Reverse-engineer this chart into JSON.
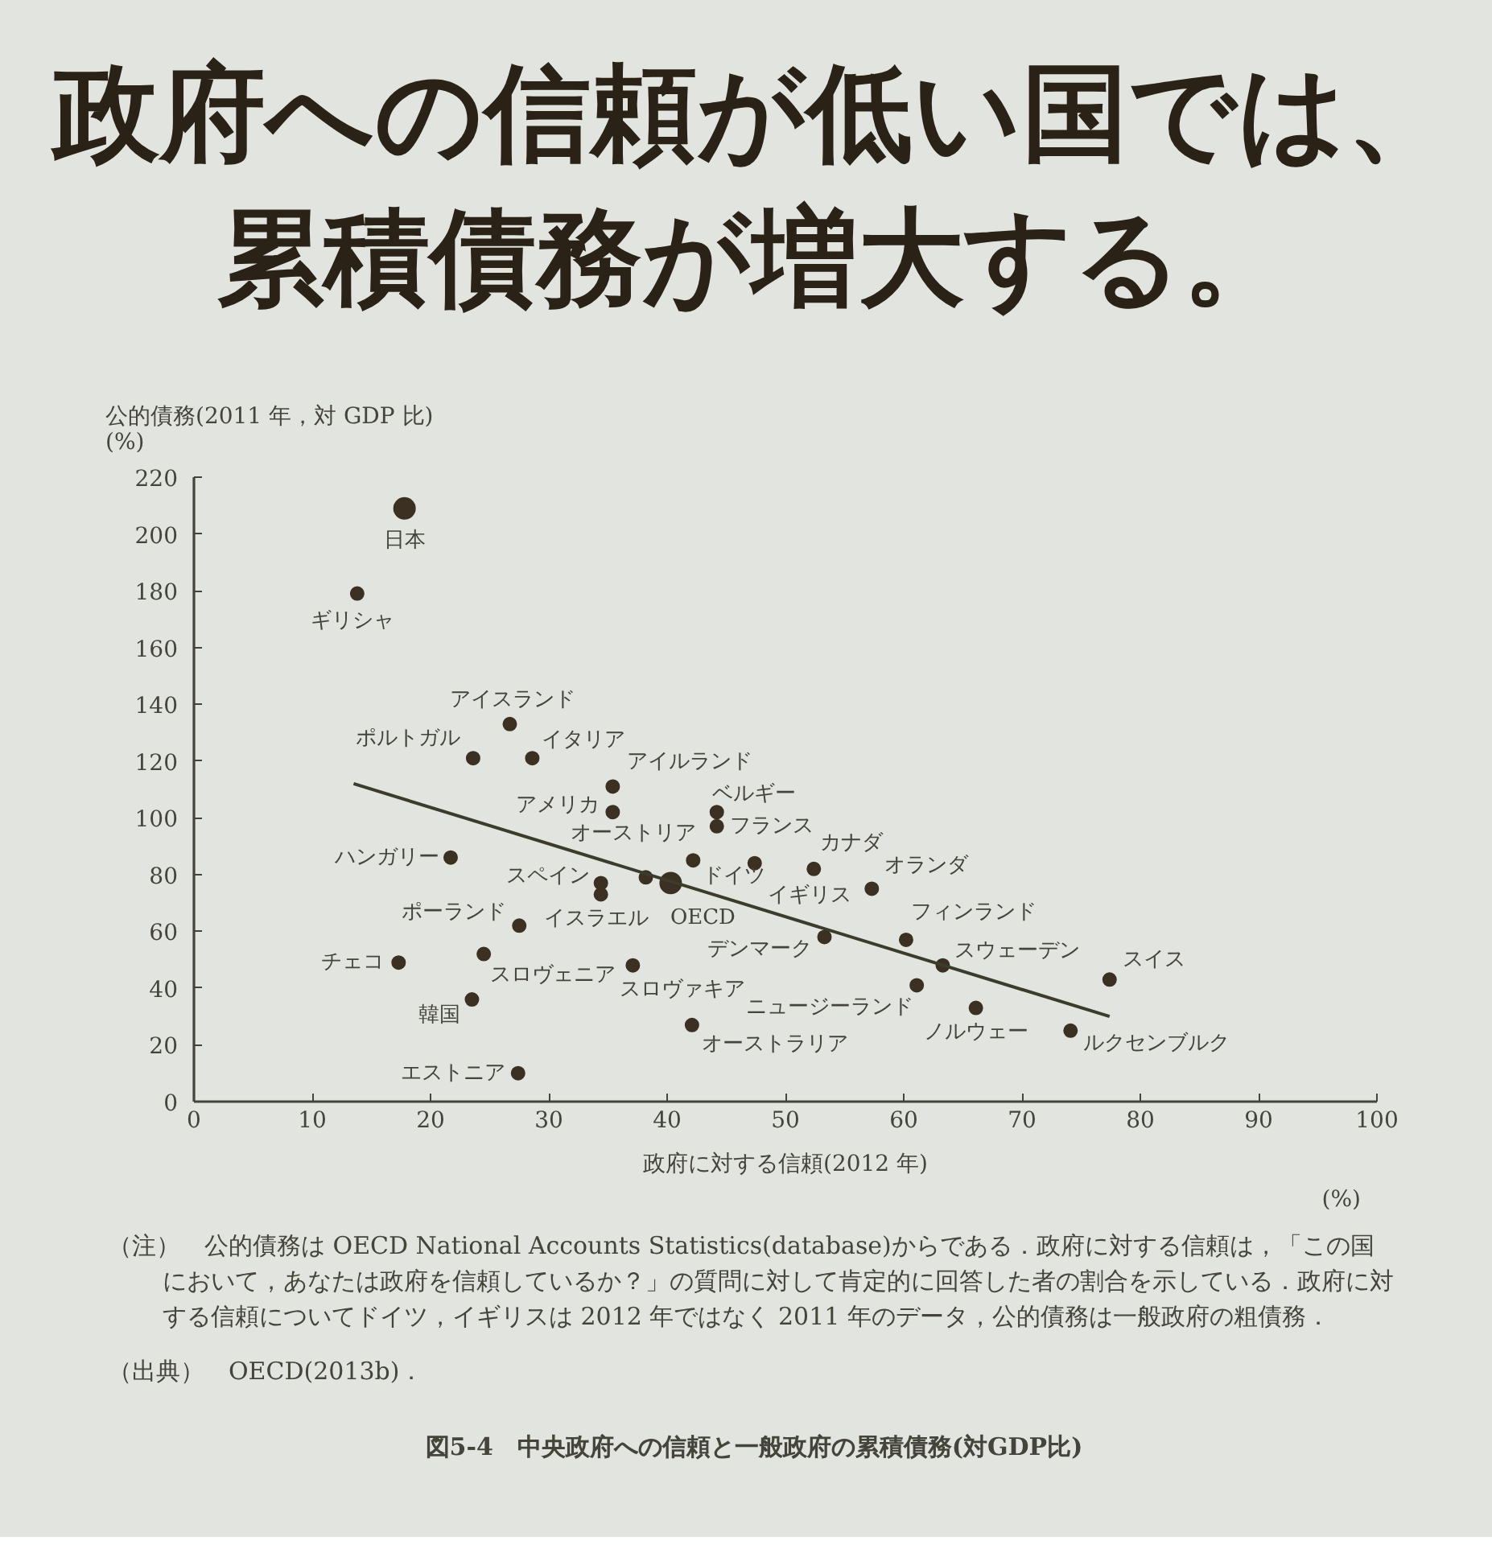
{
  "chart_data": {
    "type": "scatter",
    "title": "政府への信頼が低い国では、累積債務が増大する。",
    "xlabel": "政府に対する信頼(2012 年)",
    "ylabel": "公的債務(2011 年，対 GDP 比)\n(%)",
    "xlim": [
      0,
      100
    ],
    "xticks": [
      0,
      10,
      20,
      30,
      40,
      50,
      60,
      70,
      80,
      90,
      100
    ],
    "ylim": [
      0,
      220
    ],
    "yticks": [
      0,
      20,
      40,
      60,
      80,
      100,
      120,
      140,
      160,
      180,
      200,
      220
    ],
    "marker": "circle",
    "series": [
      {
        "color": "#3b3021",
        "x": [
          13.8,
          26.7,
          23.6,
          28.6,
          35.4,
          35.4,
          21.7,
          34.4,
          34.4,
          38.2,
          42.2,
          44.2,
          44.2,
          47.4,
          52.4,
          57.3,
          53.3,
          60.2,
          63.3,
          61.1,
          66.1,
          74.1,
          77.4,
          42.1,
          37.1,
          24.5,
          27.5,
          17.3,
          23.5,
          27.4
        ],
        "values": [
          179,
          133,
          121,
          121,
          111,
          102,
          86,
          77,
          73,
          79,
          85,
          102,
          97,
          84,
          82,
          75,
          58,
          57,
          48,
          41,
          33,
          25,
          43,
          27,
          48,
          52,
          62,
          49,
          36,
          10
        ]
      },
      {
        "color": "#3b3021",
        "x": [
          17.8,
          40.3
        ],
        "values": [
          209,
          77
        ]
      },
      {
        "type": "line",
        "marker": "none",
        "color": "#3c3c2c",
        "x": [
          13.5,
          77.4
        ],
        "values": [
          112,
          30
        ]
      }
    ],
    "annotations": [
      {
        "text": "日本",
        "x": 17.8,
        "y": 209
      },
      {
        "text": "ギリシャ",
        "x": 13.8,
        "y": 179
      },
      {
        "text": "アイスランド",
        "x": 26.7,
        "y": 133
      },
      {
        "text": "ポルトガル",
        "x": 23.6,
        "y": 121
      },
      {
        "text": "イタリア",
        "x": 28.6,
        "y": 121
      },
      {
        "text": "アイルランド",
        "x": 35.4,
        "y": 111
      },
      {
        "text": "アメリカ",
        "x": 35.4,
        "y": 102
      },
      {
        "text": "ハンガリー",
        "x": 21.7,
        "y": 86
      },
      {
        "text": "スペイン",
        "x": 34.4,
        "y": 77
      },
      {
        "text": "イスラエル",
        "x": 34.4,
        "y": 73
      },
      {
        "text": "オーストリア",
        "x": 38.2,
        "y": 79
      },
      {
        "text": "OECD",
        "x": 40.3,
        "y": 77
      },
      {
        "text": "ドイツ",
        "x": 42.2,
        "y": 85
      },
      {
        "text": "ベルギー",
        "x": 44.2,
        "y": 102
      },
      {
        "text": "フランス",
        "x": 44.2,
        "y": 97
      },
      {
        "text": "イギリス",
        "x": 47.4,
        "y": 84
      },
      {
        "text": "カナダ",
        "x": 52.4,
        "y": 82
      },
      {
        "text": "オランダ",
        "x": 57.3,
        "y": 75
      },
      {
        "text": "デンマーク",
        "x": 53.3,
        "y": 58
      },
      {
        "text": "フィンランド",
        "x": 60.2,
        "y": 57
      },
      {
        "text": "スウェーデン",
        "x": 63.3,
        "y": 48
      },
      {
        "text": "ニュージーランド",
        "x": 61.1,
        "y": 41
      },
      {
        "text": "ノルウェー",
        "x": 66.1,
        "y": 33
      },
      {
        "text": "ルクセンブルク",
        "x": 74.1,
        "y": 25
      },
      {
        "text": "スイス",
        "x": 77.4,
        "y": 43
      },
      {
        "text": "オーストラリア",
        "x": 42.1,
        "y": 27
      },
      {
        "text": "スロヴァキア",
        "x": 37.1,
        "y": 48
      },
      {
        "text": "スロヴェニア",
        "x": 24.5,
        "y": 52
      },
      {
        "text": "ポーランド",
        "x": 27.5,
        "y": 62
      },
      {
        "text": "チェコ",
        "x": 17.3,
        "y": 49
      },
      {
        "text": "韓国",
        "x": 23.5,
        "y": 36
      },
      {
        "text": "エストニア",
        "x": 27.4,
        "y": 10
      },
      "(%)",
      "（注）　公的債務は OECD National Accounts Statistics(database)からである．政府に対する信頼は，「この国において，あなたは政府を信頼しているか？」の質問に対して肯定的に回答した者の割合を示している．政府に対する信頼についてドイツ，イギリスは 2012 年ではなく 2011 年のデータ，公的債務は一般政府の粗債務．",
      "（出典）　OECD(2013b)．",
      "図5-4　中央政府への信頼と一般政府の累積債務(対GDP比)"
    ]
  }
}
